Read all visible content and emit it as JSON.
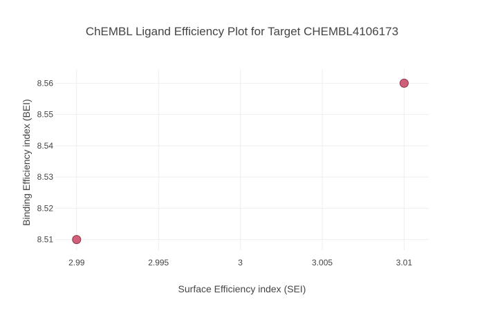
{
  "chart_data": {
    "type": "scatter",
    "title": "ChEMBL Ligand Efficiency Plot for Target CHEMBL4106173",
    "xlabel": "Surface Efficiency index (SEI)",
    "ylabel": "Binding Efficiency index (BEI)",
    "xlim": [
      2.9887,
      3.0115
    ],
    "ylim": [
      8.5066,
      8.5645
    ],
    "x_ticks": [
      2.99,
      2.995,
      3.0,
      3.005,
      3.01
    ],
    "x_tick_labels": [
      "2.99",
      "2.995",
      "3",
      "3.005",
      "3.01"
    ],
    "y_ticks": [
      8.51,
      8.52,
      8.53,
      8.54,
      8.55,
      8.56
    ],
    "y_tick_labels": [
      "8.51",
      "8.52",
      "8.53",
      "8.54",
      "8.55",
      "8.56"
    ],
    "grid": true,
    "legend": "none",
    "series": [
      {
        "color": "#d0607a",
        "edge_color": "#8a3346",
        "points": [
          {
            "x": 2.99,
            "y": 8.51
          },
          {
            "x": 3.01,
            "y": 8.56
          }
        ]
      }
    ]
  }
}
